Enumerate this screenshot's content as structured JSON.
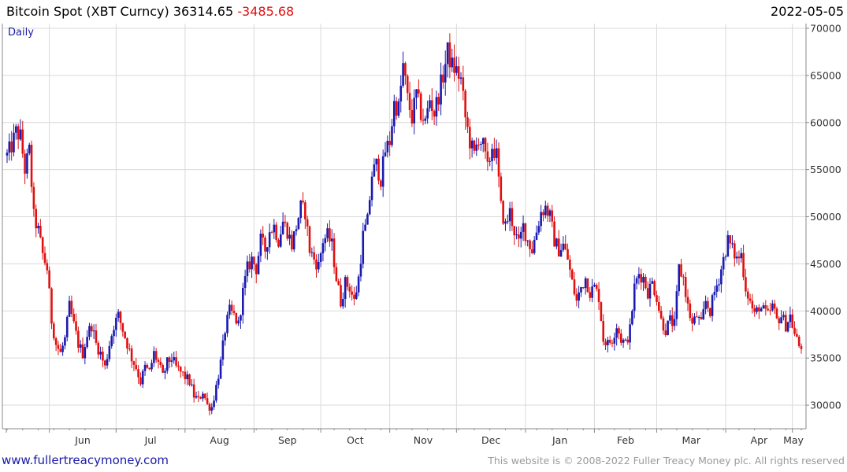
{
  "header": {
    "title": "Bitcoin Spot (XBT Curncy)",
    "last_price": "36314.65",
    "change": "-3485.68",
    "date": "2022-05-05"
  },
  "colors": {
    "up": "#1a1ab0",
    "down": "#e01010",
    "grid": "#d9d9d9",
    "frame": "#888888",
    "link": "#1a1aa8"
  },
  "footer": {
    "website": "www.fullertreacymoney.com",
    "copyright": "This website is © 2008-2022 Fuller Treacy Money plc. All rights reserved"
  },
  "chart_data": {
    "type": "candlestick",
    "title": "Bitcoin Spot (XBT Curncy)",
    "period_label": "Daily",
    "x_ticks": [
      "Jun",
      "Jul",
      "Aug",
      "Sep",
      "Oct",
      "Nov",
      "Dec",
      "Jan",
      "Feb",
      "Mar",
      "Apr",
      "May"
    ],
    "y_ticks": [
      30000,
      35000,
      40000,
      45000,
      50000,
      55000,
      60000,
      65000,
      70000
    ],
    "y_range": [
      27500,
      70500
    ],
    "grid": true,
    "axis_position": "right",
    "close_path_approx": [
      [
        0,
        56500
      ],
      [
        2,
        57500
      ],
      [
        4,
        59000
      ],
      [
        6,
        58500
      ],
      [
        8,
        55000
      ],
      [
        10,
        57000
      ],
      [
        12,
        50000
      ],
      [
        14,
        48500
      ],
      [
        16,
        46000
      ],
      [
        18,
        44500
      ],
      [
        20,
        39000
      ],
      [
        22,
        36500
      ],
      [
        24,
        35500
      ],
      [
        26,
        37000
      ],
      [
        28,
        40500
      ],
      [
        30,
        38500
      ],
      [
        32,
        36500
      ],
      [
        34,
        35500
      ],
      [
        36,
        37500
      ],
      [
        38,
        38500
      ],
      [
        40,
        36500
      ],
      [
        42,
        35500
      ],
      [
        44,
        34000
      ],
      [
        46,
        36500
      ],
      [
        48,
        38500
      ],
      [
        50,
        39500
      ],
      [
        52,
        38000
      ],
      [
        54,
        36500
      ],
      [
        56,
        35000
      ],
      [
        58,
        34000
      ],
      [
        60,
        32500
      ],
      [
        62,
        34000
      ],
      [
        64,
        33500
      ],
      [
        66,
        35500
      ],
      [
        68,
        34500
      ],
      [
        70,
        33000
      ],
      [
        72,
        34500
      ],
      [
        74,
        35000
      ],
      [
        76,
        34000
      ],
      [
        78,
        33500
      ],
      [
        80,
        33000
      ],
      [
        82,
        32500
      ],
      [
        84,
        31000
      ],
      [
        86,
        30500
      ],
      [
        88,
        31500
      ],
      [
        90,
        30000
      ],
      [
        92,
        29800
      ],
      [
        94,
        32000
      ],
      [
        96,
        34500
      ],
      [
        98,
        38000
      ],
      [
        100,
        40000
      ],
      [
        102,
        39500
      ],
      [
        104,
        38500
      ],
      [
        106,
        42000
      ],
      [
        108,
        44500
      ],
      [
        110,
        45500
      ],
      [
        112,
        44500
      ],
      [
        114,
        47500
      ],
      [
        116,
        46500
      ],
      [
        118,
        48500
      ],
      [
        120,
        49000
      ],
      [
        122,
        47500
      ],
      [
        124,
        49500
      ],
      [
        126,
        48500
      ],
      [
        128,
        47000
      ],
      [
        130,
        49000
      ],
      [
        132,
        51000
      ],
      [
        134,
        50500
      ],
      [
        136,
        46500
      ],
      [
        138,
        45500
      ],
      [
        140,
        44800
      ],
      [
        142,
        47500
      ],
      [
        144,
        48000
      ],
      [
        146,
        47000
      ],
      [
        148,
        43500
      ],
      [
        150,
        41000
      ],
      [
        152,
        43000
      ],
      [
        154,
        42500
      ],
      [
        156,
        41000
      ],
      [
        158,
        43500
      ],
      [
        160,
        48000
      ],
      [
        162,
        49500
      ],
      [
        164,
        54500
      ],
      [
        166,
        55500
      ],
      [
        168,
        54000
      ],
      [
        170,
        57000
      ],
      [
        172,
        58000
      ],
      [
        174,
        62000
      ],
      [
        176,
        61500
      ],
      [
        178,
        66000
      ],
      [
        180,
        62500
      ],
      [
        182,
        60500
      ],
      [
        184,
        63000
      ],
      [
        186,
        61000
      ],
      [
        188,
        60000
      ],
      [
        190,
        62500
      ],
      [
        192,
        61000
      ],
      [
        194,
        63000
      ],
      [
        196,
        65000
      ],
      [
        198,
        67500
      ],
      [
        200,
        66000
      ],
      [
        202,
        65500
      ],
      [
        204,
        64500
      ],
      [
        206,
        60500
      ],
      [
        208,
        58000
      ],
      [
        210,
        56500
      ],
      [
        212,
        58500
      ],
      [
        214,
        57500
      ],
      [
        216,
        55000
      ],
      [
        218,
        57500
      ],
      [
        220,
        56500
      ],
      [
        222,
        51000
      ],
      [
        224,
        49000
      ],
      [
        226,
        50500
      ],
      [
        228,
        48500
      ],
      [
        230,
        47000
      ],
      [
        232,
        49000
      ],
      [
        234,
        47500
      ],
      [
        236,
        46500
      ],
      [
        238,
        48500
      ],
      [
        240,
        50500
      ],
      [
        242,
        51000
      ],
      [
        244,
        50000
      ],
      [
        246,
        47500
      ],
      [
        248,
        46500
      ],
      [
        250,
        47000
      ],
      [
        252,
        45500
      ],
      [
        254,
        43000
      ],
      [
        256,
        41000
      ],
      [
        258,
        42500
      ],
      [
        260,
        43500
      ],
      [
        262,
        42000
      ],
      [
        264,
        42500
      ],
      [
        266,
        41500
      ],
      [
        268,
        37000
      ],
      [
        270,
        36500
      ],
      [
        272,
        37000
      ],
      [
        274,
        38500
      ],
      [
        276,
        37000
      ],
      [
        278,
        36500
      ],
      [
        280,
        38000
      ],
      [
        282,
        42500
      ],
      [
        284,
        44000
      ],
      [
        286,
        43500
      ],
      [
        288,
        42000
      ],
      [
        290,
        43000
      ],
      [
        292,
        41500
      ],
      [
        294,
        39000
      ],
      [
        296,
        38000
      ],
      [
        298,
        39000
      ],
      [
        300,
        38500
      ],
      [
        302,
        44500
      ],
      [
        304,
        43500
      ],
      [
        306,
        40500
      ],
      [
        308,
        38500
      ],
      [
        310,
        39500
      ],
      [
        312,
        38500
      ],
      [
        314,
        41000
      ],
      [
        316,
        40000
      ],
      [
        318,
        42000
      ],
      [
        320,
        43500
      ],
      [
        322,
        45500
      ],
      [
        324,
        47500
      ],
      [
        326,
        46500
      ],
      [
        328,
        45500
      ],
      [
        330,
        46000
      ],
      [
        332,
        42500
      ],
      [
        334,
        41000
      ],
      [
        336,
        39500
      ],
      [
        338,
        40500
      ],
      [
        340,
        40000
      ],
      [
        342,
        39500
      ],
      [
        344,
        40500
      ],
      [
        346,
        39000
      ],
      [
        348,
        39500
      ],
      [
        350,
        38500
      ],
      [
        352,
        39500
      ],
      [
        354,
        37500
      ],
      [
        356,
        36300
      ]
    ]
  }
}
